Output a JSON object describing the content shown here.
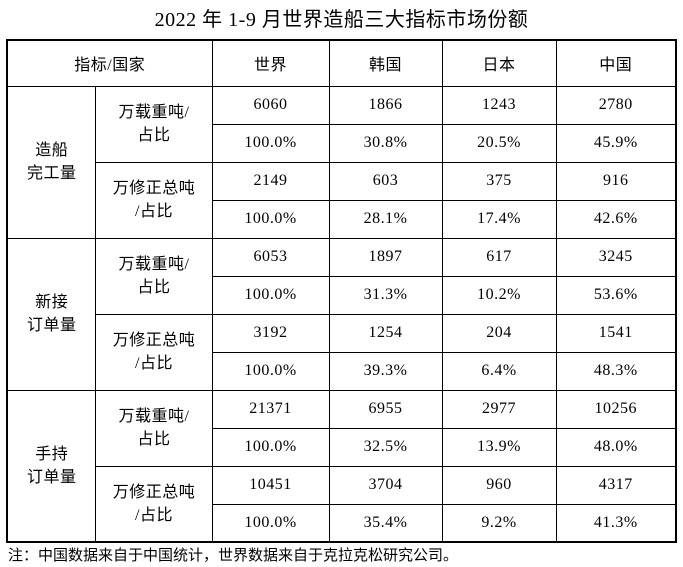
{
  "title": "2022 年 1-9 月世界造船三大指标市场份额",
  "table": {
    "header": {
      "corner": "指标/国家",
      "columns": [
        "世界",
        "韩国",
        "日本",
        "中国"
      ]
    },
    "groups": [
      {
        "label_line1": "造船",
        "label_line2": "完工量",
        "subs": [
          {
            "label_line1": "万载重吨/",
            "label_line2": "占比",
            "values": [
              "6060",
              "1866",
              "1243",
              "2780"
            ],
            "shares": [
              "100.0%",
              "30.8%",
              "20.5%",
              "45.9%"
            ]
          },
          {
            "label_line1": "万修正总吨",
            "label_line2": "/占比",
            "values": [
              "2149",
              "603",
              "375",
              "916"
            ],
            "shares": [
              "100.0%",
              "28.1%",
              "17.4%",
              "42.6%"
            ]
          }
        ]
      },
      {
        "label_line1": "新接",
        "label_line2": "订单量",
        "subs": [
          {
            "label_line1": "万载重吨/",
            "label_line2": "占比",
            "values": [
              "6053",
              "1897",
              "617",
              "3245"
            ],
            "shares": [
              "100.0%",
              "31.3%",
              "10.2%",
              "53.6%"
            ]
          },
          {
            "label_line1": "万修正总吨",
            "label_line2": "/占比",
            "values": [
              "3192",
              "1254",
              "204",
              "1541"
            ],
            "shares": [
              "100.0%",
              "39.3%",
              "6.4%",
              "48.3%"
            ]
          }
        ]
      },
      {
        "label_line1": "手持",
        "label_line2": "订单量",
        "subs": [
          {
            "label_line1": "万载重吨/",
            "label_line2": "占比",
            "values": [
              "21371",
              "6955",
              "2977",
              "10256"
            ],
            "shares": [
              "100.0%",
              "32.5%",
              "13.9%",
              "48.0%"
            ]
          },
          {
            "label_line1": "万修正总吨",
            "label_line2": "/占比",
            "values": [
              "10451",
              "3704",
              "960",
              "4317"
            ],
            "shares": [
              "100.0%",
              "35.4%",
              "9.2%",
              "41.3%"
            ]
          }
        ]
      }
    ]
  },
  "footnote": "注：中国数据来自于中国统计，世界数据来自于克拉克松研究公司。"
}
